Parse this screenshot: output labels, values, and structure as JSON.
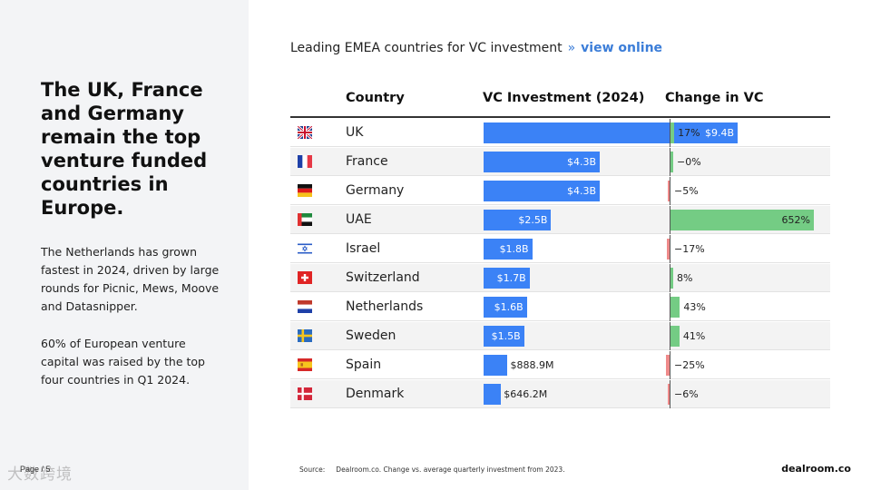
{
  "left": {
    "headline": "The UK, France and Germany remain the top venture funded countries in Europe.",
    "paragraph1": "The Netherlands has grown fastest in 2024, driven by large rounds for Picnic, Mews, Moove and Datasnipper.",
    "paragraph2": "60% of European venture capital was raised by the top four countries in Q1 2024.",
    "page_label": "Page / 5",
    "watermark": "大数跨境"
  },
  "chart_header": {
    "title": "Leading EMEA countries for VC investment",
    "separator": "»",
    "link": "view online"
  },
  "chart_data": {
    "type": "table",
    "columns": [
      "Country",
      "VC Investment (2024)",
      "Change in VC"
    ],
    "rows": [
      {
        "flag": "uk-flag-icon",
        "country": "UK",
        "vc_value": 9.4,
        "vc_label": "$9.4B",
        "change": 17,
        "change_label": "17%"
      },
      {
        "flag": "france-flag-icon",
        "country": "France",
        "vc_value": 4.3,
        "vc_label": "$4.3B",
        "change": 0,
        "change_label": "−0%"
      },
      {
        "flag": "germany-flag-icon",
        "country": "Germany",
        "vc_value": 4.3,
        "vc_label": "$4.3B",
        "change": -5,
        "change_label": "−5%"
      },
      {
        "flag": "uae-flag-icon",
        "country": "UAE",
        "vc_value": 2.5,
        "vc_label": "$2.5B",
        "change": 652,
        "change_label": "652%"
      },
      {
        "flag": "israel-flag-icon",
        "country": "Israel",
        "vc_value": 1.8,
        "vc_label": "$1.8B",
        "change": -17,
        "change_label": "−17%"
      },
      {
        "flag": "switzerland-flag-icon",
        "country": "Switzerland",
        "vc_value": 1.7,
        "vc_label": "$1.7B",
        "change": 8,
        "change_label": "8%"
      },
      {
        "flag": "netherlands-flag-icon",
        "country": "Netherlands",
        "vc_value": 1.6,
        "vc_label": "$1.6B",
        "change": 43,
        "change_label": "43%"
      },
      {
        "flag": "sweden-flag-icon",
        "country": "Sweden",
        "vc_value": 1.5,
        "vc_label": "$1.5B",
        "change": 41,
        "change_label": "41%"
      },
      {
        "flag": "spain-flag-icon",
        "country": "Spain",
        "vc_value": 0.8889,
        "vc_label": "$888.9M",
        "change": -25,
        "change_label": "−25%"
      },
      {
        "flag": "denmark-flag-icon",
        "country": "Denmark",
        "vc_value": 0.6462,
        "vc_label": "$646.2M",
        "change": -6,
        "change_label": "−6%"
      }
    ],
    "vc_max": 9.4,
    "change_max": 652,
    "colors": {
      "vc_bar": "#3b82f6",
      "change_positive": "#74cc84",
      "change_negative": "#ef8a8a"
    }
  },
  "footer": {
    "source_key": "Source:",
    "source_text": "Dealroom.co. Change vs. average quarterly investment from 2023.",
    "brand": "dealroom.co"
  }
}
